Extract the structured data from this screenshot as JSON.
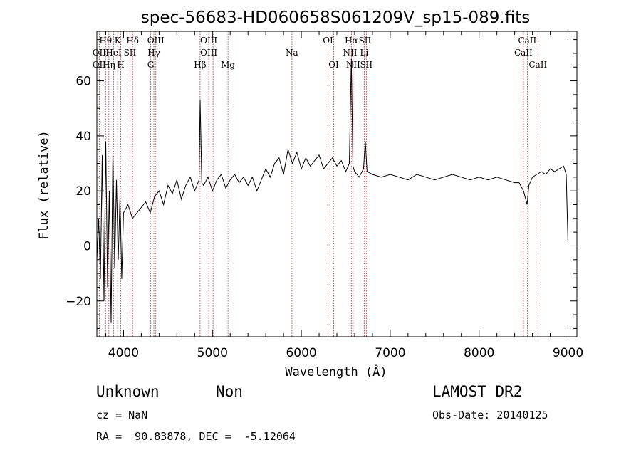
{
  "chart_data": {
    "type": "line",
    "title": "spec-56683-HD060658S061209V_sp15-089.fits",
    "xlabel": "Wavelength (Å)",
    "ylabel": "Flux (relative)",
    "xlim": [
      3700,
      9100
    ],
    "ylim": [
      -33,
      78
    ],
    "xticks": [
      4000,
      5000,
      6000,
      7000,
      8000,
      9000
    ],
    "yticks": [
      -20,
      0,
      20,
      40,
      60
    ],
    "grid": false,
    "series": [
      {
        "values_x": [
          3700,
          3720,
          3740,
          3760,
          3780,
          3800,
          3820,
          3840,
          3860,
          3880,
          3900,
          3920,
          3940,
          3960,
          3980,
          4000,
          4050,
          4100,
          4150,
          4200,
          4250,
          4300,
          4350,
          4400,
          4450,
          4500,
          4550,
          4600,
          4650,
          4700,
          4750,
          4800,
          4850,
          4862,
          4880,
          4900,
          4950,
          5000,
          5050,
          5100,
          5150,
          5200,
          5250,
          5300,
          5350,
          5400,
          5450,
          5500,
          5550,
          5600,
          5650,
          5700,
          5750,
          5800,
          5850,
          5900,
          5950,
          6000,
          6050,
          6100,
          6150,
          6200,
          6250,
          6300,
          6350,
          6400,
          6450,
          6500,
          6540,
          6563,
          6580,
          6600,
          6650,
          6700,
          6720,
          6740,
          6800,
          6900,
          7000,
          7100,
          7200,
          7300,
          7400,
          7500,
          7600,
          7700,
          7800,
          7900,
          8000,
          8100,
          8200,
          8300,
          8400,
          8450,
          8500,
          8540,
          8560,
          8600,
          8650,
          8700,
          8750,
          8800,
          8850,
          8900,
          8950,
          8980,
          9000
        ],
        "values_y": [
          -5,
          10,
          -12,
          33,
          -20,
          38,
          -15,
          20,
          -28,
          35,
          -8,
          24,
          -5,
          18,
          -12,
          12,
          15,
          10,
          12,
          14,
          16,
          12,
          18,
          20,
          15,
          22,
          19,
          24,
          17,
          22,
          25,
          20,
          24,
          53,
          23,
          22,
          25,
          20,
          24,
          26,
          21,
          24,
          26,
          23,
          25,
          22,
          25,
          20,
          24,
          28,
          25,
          30,
          32,
          26,
          35,
          30,
          34,
          28,
          32,
          29,
          31,
          33,
          28,
          30,
          32,
          29,
          31,
          27,
          30,
          68,
          29,
          27,
          25,
          28,
          38,
          27,
          26,
          25,
          26,
          25,
          24,
          26,
          25,
          24,
          25,
          26,
          25,
          24,
          25,
          24,
          25,
          24,
          23,
          23,
          20,
          15,
          22,
          25,
          26,
          27,
          26,
          28,
          27,
          28,
          29,
          26,
          1
        ]
      }
    ],
    "annotations": [
      {
        "label": "Hθ",
        "x": 3798,
        "row": 0
      },
      {
        "label": "OII",
        "x": 3727,
        "row": 1
      },
      {
        "label": "OII",
        "x": 3727,
        "row": 2
      },
      {
        "label": "K",
        "x": 3934,
        "row": 0
      },
      {
        "label": "HeI",
        "x": 3889,
        "row": 1
      },
      {
        "label": "Hη",
        "x": 3835,
        "row": 2
      },
      {
        "label": "Hδ",
        "x": 4102,
        "row": 0
      },
      {
        "label": "SII",
        "x": 4072,
        "row": 1
      },
      {
        "label": "H",
        "x": 3969,
        "row": 2
      },
      {
        "label": "OIII",
        "x": 4363,
        "row": 0
      },
      {
        "label": "Hγ",
        "x": 4341,
        "row": 1
      },
      {
        "label": "G",
        "x": 4305,
        "row": 2
      },
      {
        "label": "OIII",
        "x": 4959,
        "row": 0
      },
      {
        "label": "OIII",
        "x": 4959,
        "row": 1
      },
      {
        "label": "Hβ",
        "x": 4861,
        "row": 2
      },
      {
        "label": "Mg",
        "x": 5175,
        "row": 2
      },
      {
        "label": "Na",
        "x": 5894,
        "row": 1
      },
      {
        "label": "OI",
        "x": 6300,
        "row": 0
      },
      {
        "label": "OI",
        "x": 6364,
        "row": 2
      },
      {
        "label": "Hα",
        "x": 6563,
        "row": 0
      },
      {
        "label": "SII",
        "x": 6716,
        "row": 0
      },
      {
        "label": "NII",
        "x": 6548,
        "row": 1
      },
      {
        "label": "Li",
        "x": 6708,
        "row": 1
      },
      {
        "label": "NII",
        "x": 6583,
        "row": 2
      },
      {
        "label": "SII",
        "x": 6731,
        "row": 2
      },
      {
        "label": "CaII",
        "x": 8542,
        "row": 0
      },
      {
        "label": "CaII",
        "x": 8498,
        "row": 1
      },
      {
        "label": "CaII",
        "x": 8662,
        "row": 2
      }
    ],
    "lines_x": [
      3727,
      3798,
      3835,
      3889,
      3934,
      3969,
      4072,
      4102,
      4305,
      4341,
      4363,
      4861,
      4959,
      5007,
      5175,
      5894,
      6300,
      6364,
      6548,
      6563,
      6583,
      6708,
      6716,
      6731,
      8498,
      8542,
      8662
    ]
  },
  "footer": {
    "object_class": "Unknown",
    "object_subclass": "Non",
    "survey": "LAMOST DR2",
    "cz": "cz = NaN",
    "obs_date": "Obs-Date: 20140125",
    "coords": "RA =  90.83878, DEC =  -5.12064"
  }
}
